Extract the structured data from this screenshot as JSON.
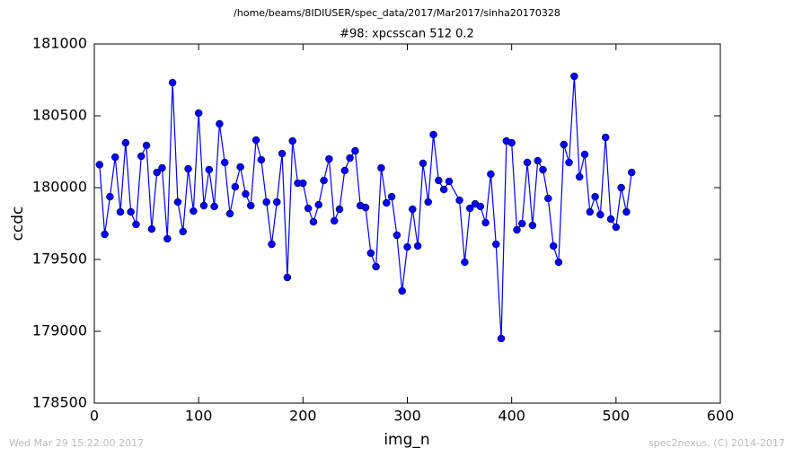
{
  "chart_data": {
    "type": "line",
    "suptitle": "/home/beams/8IDIUSER/spec_data/2017/Mar2017/sinha20170328",
    "title": "#98: xpcsscan 512 0.2",
    "x_label": "img_n",
    "y_label": "ccdc",
    "footer_left": "Wed Mar 29 15:22:00 2017",
    "footer_right": "spec2nexus, (C) 2014-2017",
    "x": [
      5,
      10,
      15,
      20,
      25,
      30,
      35,
      40,
      45,
      50,
      55,
      60,
      65,
      70,
      75,
      80,
      85,
      90,
      95,
      100,
      105,
      110,
      115,
      120,
      125,
      130,
      135,
      140,
      145,
      150,
      155,
      160,
      165,
      170,
      175,
      180,
      185,
      190,
      195,
      200,
      205,
      210,
      215,
      220,
      225,
      230,
      235,
      240,
      245,
      250,
      255,
      260,
      265,
      270,
      275,
      280,
      285,
      290,
      295,
      300,
      305,
      310,
      315,
      320,
      325,
      330,
      335,
      340,
      350,
      355,
      360,
      365,
      370,
      375,
      380,
      385,
      390,
      395,
      400,
      405,
      410,
      415,
      420,
      425,
      430,
      435,
      440,
      445,
      450,
      455,
      460,
      465,
      470,
      475,
      480,
      485,
      490,
      495,
      500,
      505,
      510,
      515
    ],
    "series": [
      {
        "name": "ccdc",
        "color": "#0000ff",
        "values": [
          180160,
          179675,
          179937,
          180212,
          179831,
          180312,
          179831,
          179744,
          180219,
          180294,
          179712,
          180106,
          180137,
          179644,
          180731,
          179900,
          179694,
          180131,
          179837,
          180519,
          179875,
          180125,
          179869,
          180444,
          180175,
          179819,
          180006,
          180144,
          179956,
          179875,
          180331,
          180194,
          179900,
          179606,
          179900,
          180237,
          179375,
          180325,
          180031,
          180031,
          179856,
          179762,
          179881,
          180050,
          180200,
          179769,
          179850,
          180119,
          180206,
          180256,
          179875,
          179862,
          179544,
          179450,
          180137,
          179894,
          179937,
          179669,
          179281,
          179587,
          179850,
          179594,
          180169,
          179900,
          180369,
          180050,
          179987,
          180044,
          179912,
          179481,
          179856,
          179887,
          179869,
          179756,
          180094,
          179606,
          178950,
          180325,
          180312,
          179706,
          179750,
          180175,
          179737,
          180187,
          180125,
          179925,
          179594,
          179481,
          180300,
          180175,
          180775,
          180075,
          180231,
          179831,
          179937,
          179812,
          180350,
          179781,
          179725,
          180000,
          179831,
          180106
        ]
      }
    ],
    "xlim": [
      0,
      600
    ],
    "xticks": [
      0,
      100,
      200,
      300,
      400,
      500,
      600
    ],
    "ylim": [
      178500,
      181000
    ],
    "yticks": [
      178500,
      179000,
      179500,
      180000,
      180500,
      181000
    ],
    "marker": "circle",
    "grid": false
  }
}
